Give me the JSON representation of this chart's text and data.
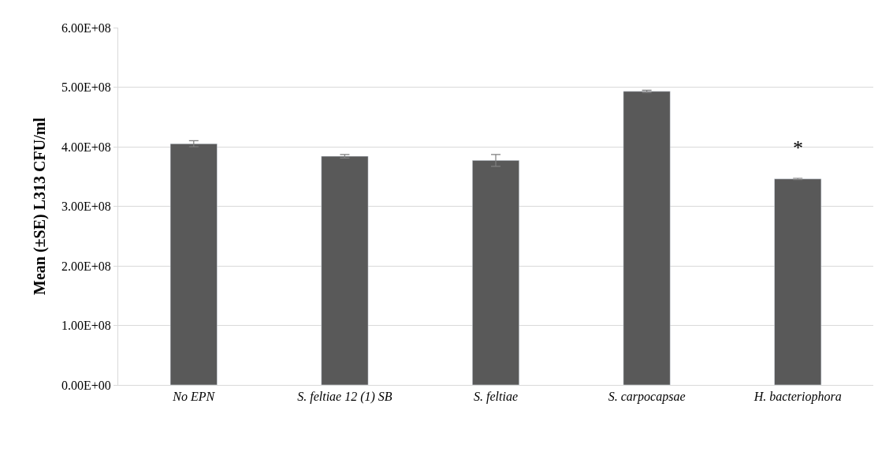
{
  "chart_data": {
    "type": "bar",
    "ylabel": "Mean (±SE) L313 CFU/ml",
    "categories": [
      "No EPN",
      "S. feltiae 12 (1) SB",
      "S. feltiae",
      "S. carpocapsae",
      "H. bacteriophora"
    ],
    "values": [
      405000000,
      384000000,
      377000000,
      493000000,
      346000000
    ],
    "errors": [
      5000000,
      3000000,
      10000000,
      2000000,
      1000000
    ],
    "color": "#595959",
    "ylim": [
      0,
      600000000
    ],
    "yticks": [
      {
        "value": 0,
        "label": "0.00E+00"
      },
      {
        "value": 100000000,
        "label": "1.00E+08"
      },
      {
        "value": 200000000,
        "label": "2.00E+08"
      },
      {
        "value": 300000000,
        "label": "3.00E+08"
      },
      {
        "value": 400000000,
        "label": "4.00E+08"
      },
      {
        "value": 500000000,
        "label": "5.00E+08"
      },
      {
        "value": 600000000,
        "label": "6.00E+08"
      }
    ],
    "grid": "y",
    "annotations": [
      "*"
    ]
  }
}
